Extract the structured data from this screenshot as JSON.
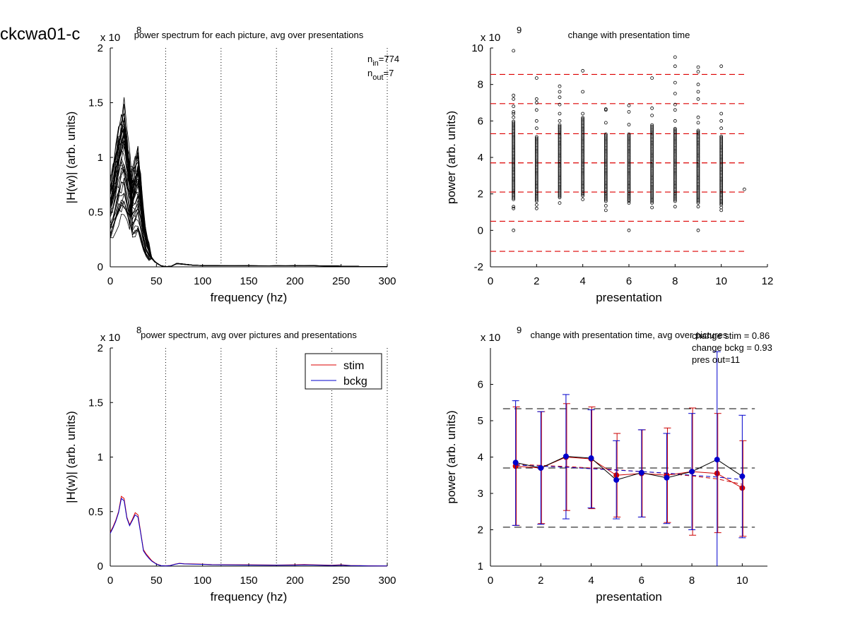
{
  "figure_title": "ckcwa01-c",
  "chart_data": [
    {
      "id": "tl",
      "type": "line",
      "title": "power spectrum for each picture, avg over presentations",
      "xlabel": "frequency (hz)",
      "ylabel": "|H(w)| (arb. units)",
      "exponent": "x 10",
      "exponent_power": "8",
      "xlim": [
        0,
        300
      ],
      "ylim": [
        0,
        2
      ],
      "xticks": [
        0,
        50,
        100,
        150,
        200,
        250,
        300
      ],
      "yticks": [
        0,
        0.5,
        1,
        1.5,
        2
      ],
      "ytick_labels": [
        "0",
        "0.5",
        "1",
        "1.5",
        "2"
      ],
      "vlines": [
        60,
        120,
        180,
        240,
        300
      ],
      "annotations": [
        {
          "base": "n",
          "sub": "in",
          "rest": "=774"
        },
        {
          "base": "n",
          "sub": "out",
          "rest": "=7"
        }
      ],
      "curve_count": 40,
      "mean_curve": {
        "x": [
          0,
          3,
          6,
          9,
          12,
          15,
          18,
          21,
          24,
          27,
          30,
          33,
          36,
          39,
          42,
          45,
          48,
          51,
          55,
          60,
          66,
          72,
          78,
          84,
          90,
          100,
          120,
          150,
          180,
          200,
          220,
          240,
          260,
          280,
          300
        ],
        "y": [
          0.42,
          0.5,
          0.6,
          0.7,
          0.78,
          0.8,
          0.68,
          0.55,
          0.5,
          0.56,
          0.62,
          0.48,
          0.3,
          0.18,
          0.12,
          0.08,
          0.05,
          0.03,
          0.01,
          0.003,
          0.005,
          0.03,
          0.025,
          0.02,
          0.015,
          0.012,
          0.01,
          0.01,
          0.01,
          0.01,
          0.01,
          0.008,
          0.005,
          0.003,
          0.002
        ]
      }
    },
    {
      "id": "tr",
      "type": "scatter",
      "title": "change with presentation time",
      "xlabel": "presentation",
      "ylabel": "power (arb. units)",
      "exponent": "x 10",
      "exponent_power": "9",
      "xlim": [
        0,
        12
      ],
      "ylim": [
        -2,
        10
      ],
      "xticks": [
        0,
        2,
        4,
        6,
        8,
        10,
        12
      ],
      "yticks": [
        -2,
        0,
        2,
        4,
        6,
        8,
        10
      ],
      "hlines": [
        -1.15,
        0.5,
        2.1,
        3.7,
        5.3,
        6.95,
        8.55
      ],
      "hline_color": "#dd0000",
      "point_series": [
        {
          "x": 1,
          "dense_range": [
            1.7,
            6.0
          ],
          "outliers": [
            0,
            1.2,
            1.3,
            6.2,
            6.4,
            6.5,
            6.8,
            7.2,
            7.4,
            9.85
          ]
        },
        {
          "x": 2,
          "dense_range": [
            1.6,
            5.2
          ],
          "outliers": [
            1.2,
            1.4,
            5.6,
            6.0,
            6.6,
            7.0,
            7.2,
            8.35
          ]
        },
        {
          "x": 3,
          "dense_range": [
            1.8,
            5.8
          ],
          "outliers": [
            1.5,
            6.0,
            6.4,
            6.9,
            7.3,
            7.6,
            7.9
          ]
        },
        {
          "x": 4,
          "dense_range": [
            1.9,
            6.2
          ],
          "outliers": [
            1.7,
            6.4,
            7.6,
            8.75
          ]
        },
        {
          "x": 5,
          "dense_range": [
            1.6,
            5.3
          ],
          "outliers": [
            1.1,
            1.35,
            5.9,
            6.6,
            6.65
          ]
        },
        {
          "x": 6,
          "dense_range": [
            1.6,
            5.3
          ],
          "outliers": [
            0,
            1.5,
            5.8,
            6.5,
            6.85
          ]
        },
        {
          "x": 7,
          "dense_range": [
            1.5,
            5.8
          ],
          "outliers": [
            1.25,
            6.3,
            6.7,
            8.35
          ]
        },
        {
          "x": 8,
          "dense_range": [
            1.6,
            5.6
          ],
          "outliers": [
            1.3,
            6.0,
            6.6,
            6.9,
            7.5,
            8.1,
            9.0,
            9.5
          ]
        },
        {
          "x": 9,
          "dense_range": [
            1.5,
            5.5
          ],
          "outliers": [
            0,
            1.3,
            5.9,
            6.2,
            7.2,
            7.6,
            8.0,
            8.7,
            8.95
          ]
        },
        {
          "x": 10,
          "dense_range": [
            1.4,
            5.2
          ],
          "outliers": [
            1.1,
            1.25,
            5.6,
            6.0,
            6.4,
            9.0
          ]
        },
        {
          "x": 11,
          "dense_range": null,
          "outliers": [
            2.25
          ]
        }
      ]
    },
    {
      "id": "bl",
      "type": "line",
      "title": "power spectrum, avg over pictures and presentations",
      "xlabel": "frequency (hz)",
      "ylabel": "|H(w)| (arb. units)",
      "exponent": "x 10",
      "exponent_power": "8",
      "xlim": [
        0,
        300
      ],
      "ylim": [
        0,
        2
      ],
      "xticks": [
        0,
        50,
        100,
        150,
        200,
        250,
        300
      ],
      "yticks": [
        0,
        0.5,
        1,
        1.5,
        2
      ],
      "ytick_labels": [
        "0",
        "0.5",
        "1",
        "1.5",
        "2"
      ],
      "vlines": [
        60,
        120,
        180,
        240,
        300
      ],
      "legend": "top-right",
      "series": [
        {
          "name": "stim",
          "color": "#dd0000",
          "x": [
            0,
            3,
            6,
            9,
            12,
            15,
            18,
            21,
            24,
            27,
            30,
            33,
            36,
            39,
            42,
            45,
            50,
            55,
            60,
            65,
            70,
            75,
            80,
            90,
            100,
            110,
            150,
            180,
            200,
            210,
            220,
            240,
            250,
            260,
            280,
            300
          ],
          "y": [
            0.31,
            0.36,
            0.42,
            0.5,
            0.64,
            0.62,
            0.45,
            0.38,
            0.43,
            0.49,
            0.47,
            0.31,
            0.15,
            0.11,
            0.08,
            0.05,
            0.02,
            0.005,
            0.003,
            0.006,
            0.018,
            0.026,
            0.022,
            0.02,
            0.018,
            0.015,
            0.012,
            0.01,
            0.012,
            0.015,
            0.012,
            0.008,
            0.012,
            0.006,
            0.003,
            0.002
          ]
        },
        {
          "name": "bckg",
          "color": "#0000cc",
          "x": [
            0,
            3,
            6,
            9,
            12,
            15,
            18,
            21,
            24,
            27,
            30,
            33,
            36,
            39,
            42,
            45,
            50,
            55,
            60,
            65,
            70,
            75,
            80,
            90,
            100,
            110,
            150,
            180,
            200,
            210,
            220,
            240,
            250,
            260,
            280,
            300
          ],
          "y": [
            0.3,
            0.35,
            0.41,
            0.49,
            0.62,
            0.6,
            0.44,
            0.37,
            0.42,
            0.47,
            0.45,
            0.3,
            0.14,
            0.1,
            0.07,
            0.045,
            0.018,
            0.004,
            0.002,
            0.005,
            0.016,
            0.024,
            0.02,
            0.018,
            0.016,
            0.013,
            0.01,
            0.008,
            0.009,
            0.011,
            0.01,
            0.006,
            0.009,
            0.005,
            0.002,
            0.001
          ]
        }
      ]
    },
    {
      "id": "br",
      "type": "line",
      "title": "change with presentation time, avg over pictures",
      "xlabel": "presentation",
      "ylabel": "power (arb. units)",
      "exponent": "x 10",
      "exponent_power": "9",
      "xlim": [
        0,
        11
      ],
      "ylim": [
        1,
        7
      ],
      "xticks": [
        0,
        2,
        4,
        6,
        8,
        10
      ],
      "yticks": [
        1,
        2,
        3,
        4,
        5,
        6
      ],
      "hlines": [
        2.07,
        3.7,
        5.33
      ],
      "hline_color": "#000000",
      "annotations": [
        "change stim = 0.86",
        "change bckg = 0.93",
        "pres out=11"
      ],
      "x": [
        1,
        2,
        3,
        4,
        5,
        6,
        7,
        8,
        9,
        10
      ],
      "series": [
        {
          "name": "stim",
          "color": "#cc0000",
          "values": [
            3.75,
            3.7,
            4.0,
            3.95,
            3.5,
            3.55,
            3.5,
            3.6,
            3.55,
            3.15
          ],
          "err_low": [
            2.12,
            2.17,
            2.53,
            2.58,
            2.35,
            2.35,
            2.2,
            1.85,
            1.92,
            1.82
          ],
          "err_high": [
            5.38,
            5.25,
            5.47,
            5.38,
            4.65,
            4.75,
            4.8,
            5.35,
            5.2,
            4.45
          ],
          "trend": [
            3.8,
            3.77,
            3.74,
            3.7,
            3.65,
            3.6,
            3.55,
            3.48,
            3.4,
            3.25
          ]
        },
        {
          "name": "bckg",
          "color": "#0000cc",
          "values": [
            3.85,
            3.7,
            4.02,
            3.97,
            3.37,
            3.57,
            3.43,
            3.6,
            3.93,
            3.47
          ],
          "err_low": [
            2.12,
            2.15,
            2.3,
            2.6,
            2.3,
            2.35,
            2.17,
            2.0,
            0.95,
            1.78
          ],
          "err_high": [
            5.55,
            5.25,
            5.72,
            5.3,
            4.45,
            4.75,
            4.65,
            5.2,
            6.9,
            5.15
          ],
          "trend": [
            3.78,
            3.75,
            3.72,
            3.68,
            3.64,
            3.6,
            3.56,
            3.5,
            3.45,
            3.38
          ]
        }
      ]
    }
  ]
}
